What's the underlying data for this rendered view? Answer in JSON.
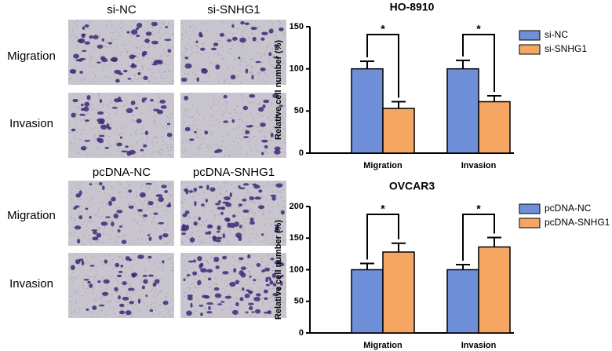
{
  "panels": {
    "columns_top": [
      "si-NC",
      "si-SNHG1"
    ],
    "columns_bottom": [
      "pcDNA-NC",
      "pcDNA-SNHG1"
    ],
    "rows_top": [
      "Migration",
      "Invasion"
    ],
    "rows_bottom": [
      "Migration",
      "Invasion"
    ]
  },
  "chart_data": [
    {
      "type": "bar",
      "title": "HO-8910",
      "y_label": "Relative cell number (%)",
      "categories": [
        "Migration",
        "Invasion"
      ],
      "series": [
        {
          "name": "si-NC",
          "color": "#6f8fd8",
          "values": [
            100,
            100
          ],
          "errors": [
            9,
            10
          ]
        },
        {
          "name": "si-SNHG1",
          "color": "#f5a663",
          "values": [
            53,
            61
          ],
          "errors": [
            8,
            7
          ]
        }
      ],
      "ylim": [
        0,
        150
      ],
      "yticks": [
        0,
        50,
        100,
        150
      ],
      "annotations": [
        "*",
        "*"
      ],
      "legend": "upper-right"
    },
    {
      "type": "bar",
      "title": "OVCAR3",
      "y_label": "Relative cell number (%)",
      "categories": [
        "Migration",
        "Invasion"
      ],
      "series": [
        {
          "name": "pcDNA-NC",
          "color": "#6f8fd8",
          "values": [
            100,
            100
          ],
          "errors": [
            10,
            8
          ]
        },
        {
          "name": "pcDNA-SNHG1",
          "color": "#f5a663",
          "values": [
            128,
            136
          ],
          "errors": [
            14,
            15
          ]
        }
      ],
      "ylim": [
        0,
        200
      ],
      "yticks": [
        0,
        50,
        100,
        150,
        200
      ],
      "annotations": [
        "*",
        "*"
      ],
      "legend": "upper-right"
    }
  ]
}
